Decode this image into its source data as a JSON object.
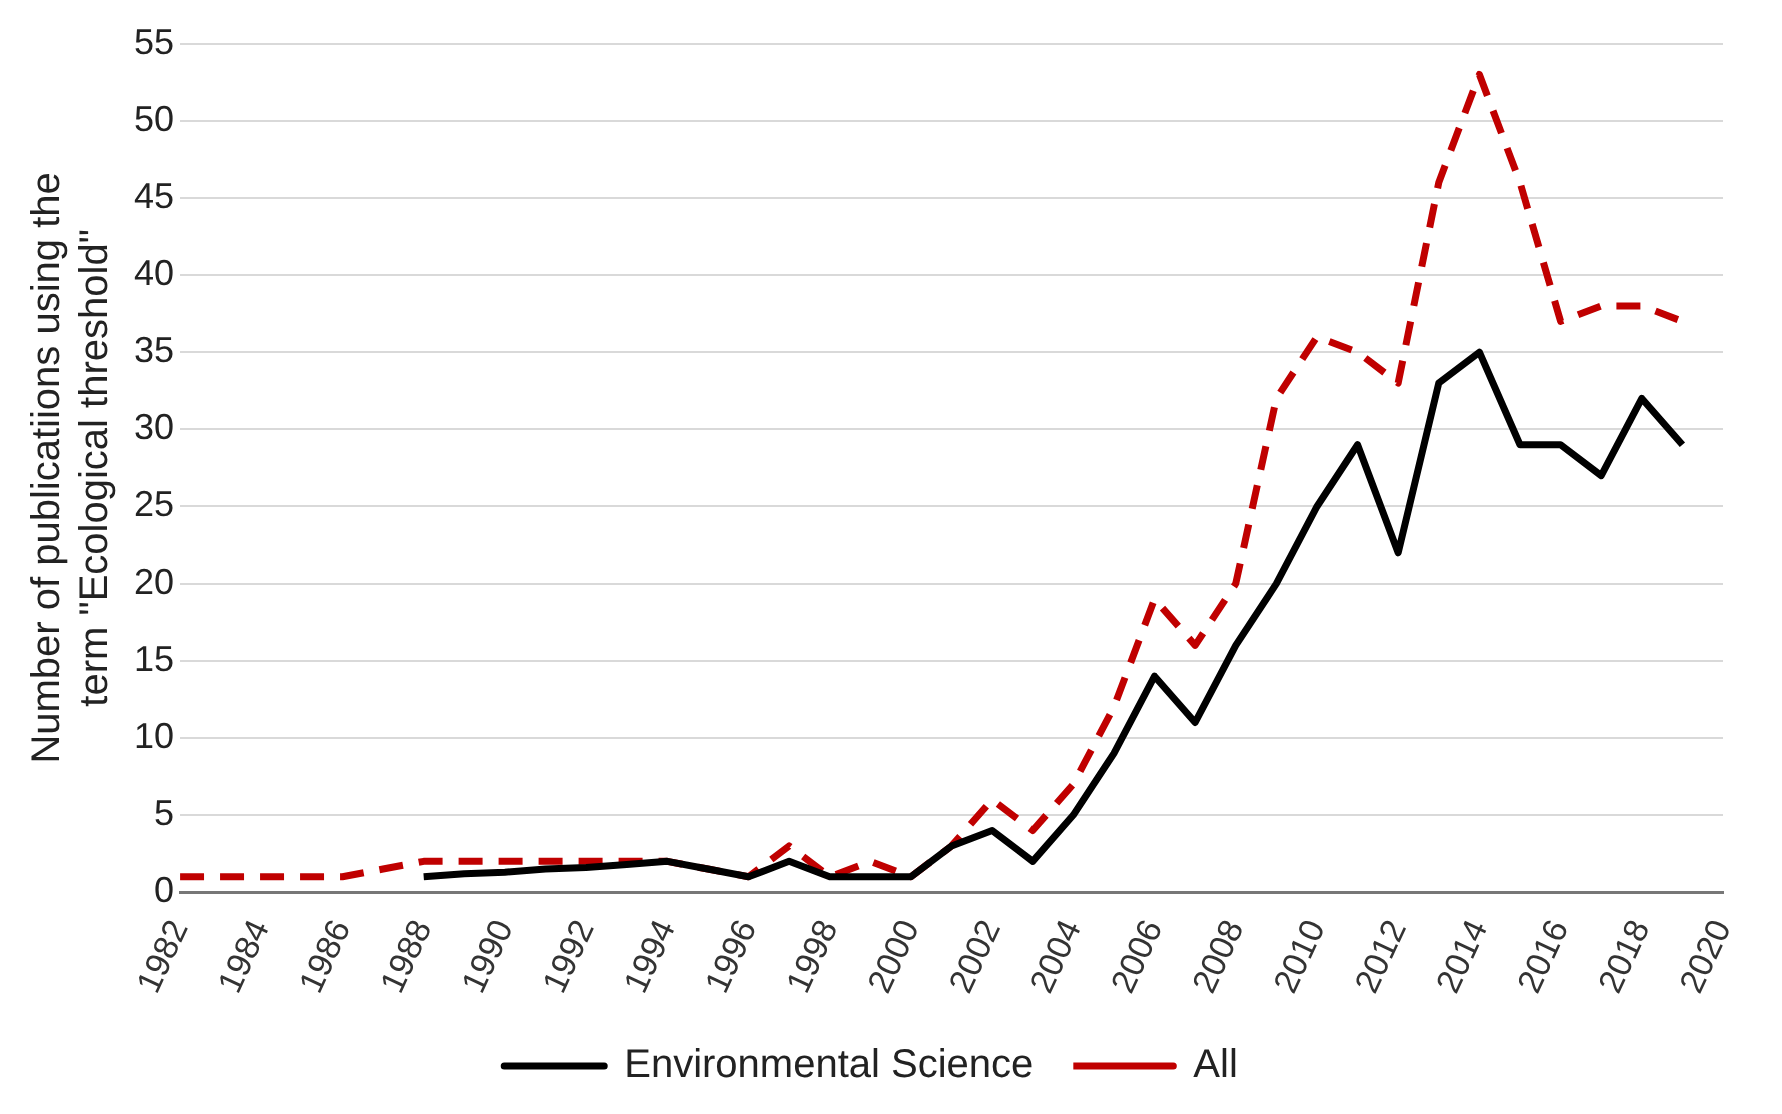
{
  "chart_data": {
    "type": "line",
    "ylabel": "Number of publicatiions using the term \"Ecological threshold\"",
    "x": [
      1982,
      1983,
      1984,
      1985,
      1986,
      1987,
      1988,
      1989,
      1990,
      1991,
      1992,
      1993,
      1994,
      1995,
      1996,
      1997,
      1998,
      1999,
      2000,
      2001,
      2002,
      2003,
      2004,
      2005,
      2006,
      2007,
      2008,
      2009,
      2010,
      2011,
      2012,
      2013,
      2014,
      2015,
      2016,
      2017,
      2018,
      2019
    ],
    "series": [
      {
        "name": "Environmental Science",
        "color": "#000000",
        "line_style": "solid",
        "values": [
          null,
          null,
          null,
          null,
          null,
          null,
          1,
          1.2,
          1.3,
          1.5,
          1.6,
          1.8,
          2,
          1.5,
          1,
          2,
          1,
          1,
          1,
          3,
          4,
          2,
          5,
          9,
          14,
          11,
          16,
          20,
          25,
          29,
          22,
          33,
          35,
          29,
          29,
          27,
          32,
          29
        ]
      },
      {
        "name": "All",
        "color": "#c00000",
        "line_style": "dashed",
        "values": [
          1,
          1,
          1,
          1,
          1,
          1.5,
          2,
          2,
          2,
          2,
          2,
          2,
          2,
          1.5,
          1,
          3,
          1,
          2,
          1,
          3,
          6,
          4,
          7,
          12,
          19,
          16,
          20,
          32,
          36,
          35,
          33,
          46,
          53,
          46,
          37,
          38,
          38,
          37
        ]
      }
    ],
    "xlim": [
      1982,
      2020
    ],
    "xticks": [
      1982,
      1984,
      1986,
      1988,
      1990,
      1992,
      1994,
      1996,
      1998,
      2000,
      2002,
      2004,
      2006,
      2008,
      2010,
      2012,
      2014,
      2016,
      2018,
      2020
    ],
    "ylim": [
      0,
      55
    ],
    "yticks": [
      0,
      5,
      10,
      15,
      20,
      25,
      30,
      35,
      40,
      45,
      50,
      55
    ],
    "grid": "y",
    "legend": "bottom",
    "marker": "none"
  }
}
